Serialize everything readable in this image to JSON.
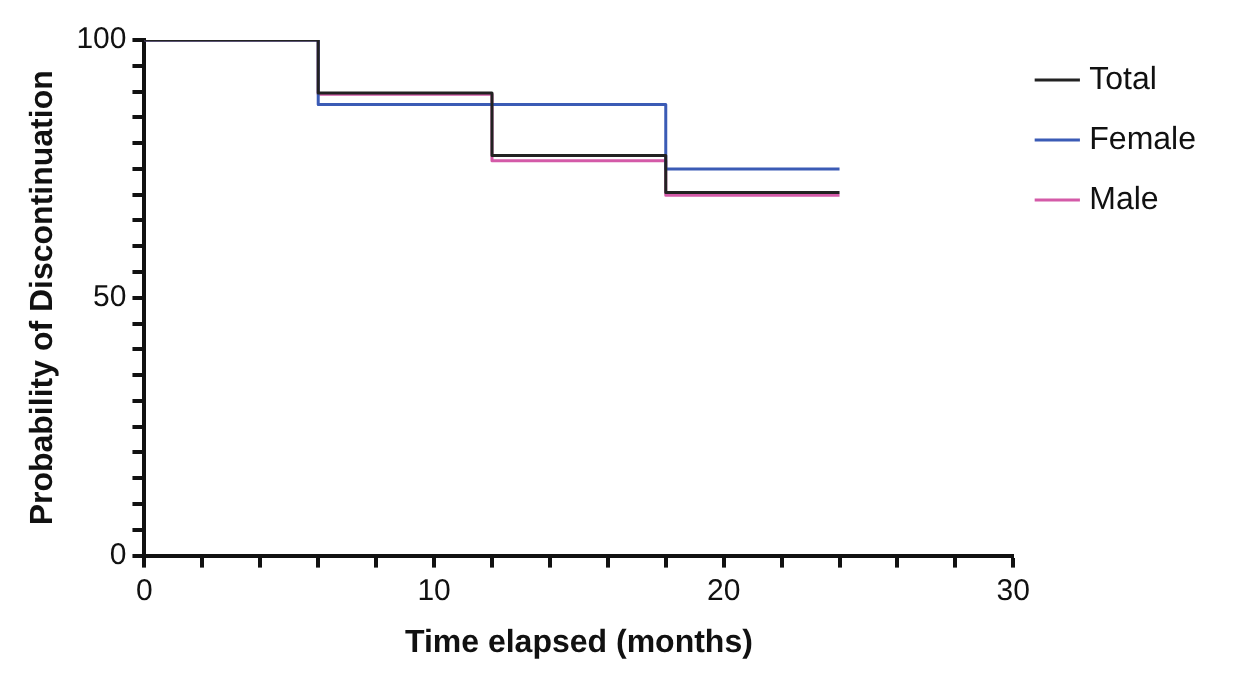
{
  "chart_data": {
    "type": "step",
    "xlabel": "Time elapsed (months)",
    "ylabel": "Probability of Discontinuation",
    "x": [
      0,
      6,
      12,
      18,
      24
    ],
    "series": [
      {
        "name": "Total",
        "color": "#222222",
        "values": [
          100,
          89.7,
          77.6,
          70.4,
          70.4
        ]
      },
      {
        "name": "Female",
        "color": "#3b5bb5",
        "values": [
          100,
          87.5,
          87.5,
          75,
          75
        ]
      },
      {
        "name": "Male",
        "color": "#d45aa8",
        "values": [
          100,
          89.5,
          76.6,
          69.9,
          69.9
        ]
      }
    ],
    "xlim": [
      0,
      30
    ],
    "ylim": [
      0,
      100
    ],
    "xticks": [
      0,
      {
        "value": 2,
        "label": null
      },
      {
        "value": 4,
        "label": null
      },
      {
        "value": 6,
        "label": null
      },
      {
        "value": 8,
        "label": null
      },
      10,
      {
        "value": 12,
        "label": null
      },
      {
        "value": 14,
        "label": null
      },
      {
        "value": 16,
        "label": null
      },
      {
        "value": 18,
        "label": null
      },
      20,
      {
        "value": 22,
        "label": null
      },
      {
        "value": 24,
        "label": null
      },
      {
        "value": 26,
        "label": null
      },
      {
        "value": 28,
        "label": null
      },
      30
    ],
    "yticks": [
      0,
      {
        "value": 5,
        "label": null
      },
      {
        "value": 10,
        "label": null
      },
      {
        "value": 15,
        "label": null
      },
      {
        "value": 20,
        "label": null
      },
      {
        "value": 25,
        "label": null
      },
      {
        "value": 30,
        "label": null
      },
      {
        "value": 35,
        "label": null
      },
      {
        "value": 40,
        "label": null
      },
      {
        "value": 45,
        "label": null
      },
      50,
      {
        "value": 55,
        "label": null
      },
      {
        "value": 60,
        "label": null
      },
      {
        "value": 65,
        "label": null
      },
      {
        "value": 70,
        "label": null
      },
      {
        "value": 75,
        "label": null
      },
      {
        "value": 80,
        "label": null
      },
      {
        "value": 85,
        "label": null
      },
      {
        "value": 90,
        "label": null
      },
      {
        "value": 95,
        "label": null
      },
      100
    ],
    "grid": false,
    "legend": "right"
  }
}
